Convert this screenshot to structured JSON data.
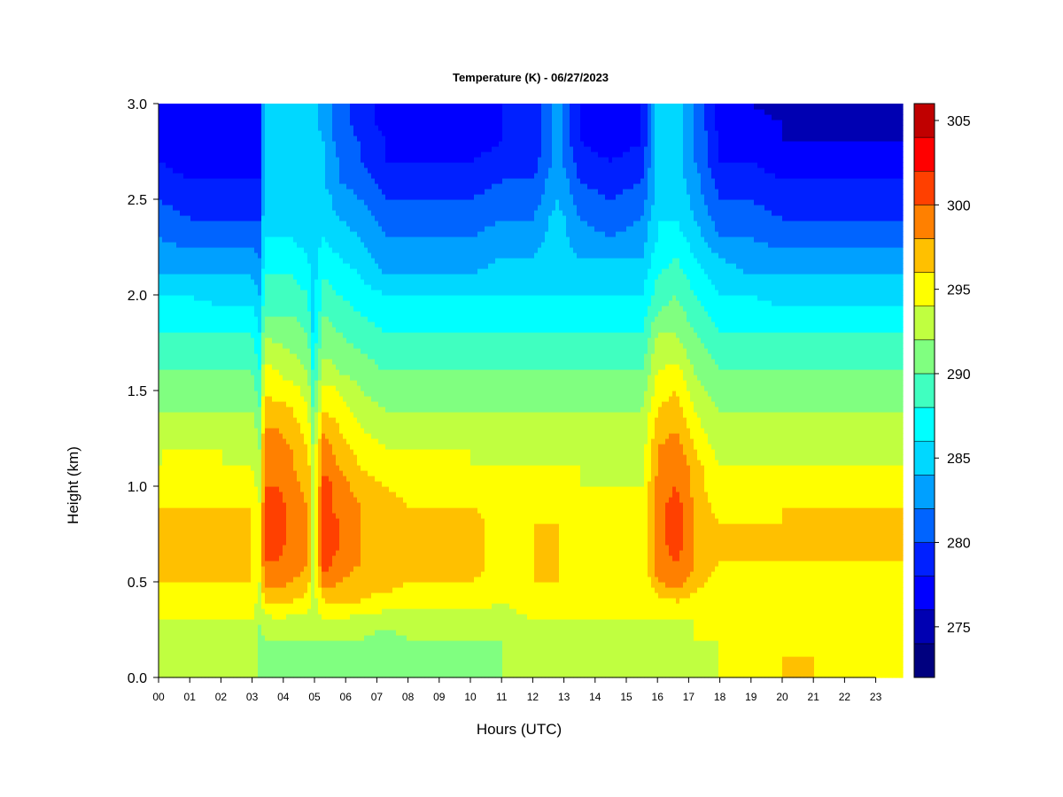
{
  "chart_data": {
    "type": "heatmap",
    "title": "Temperature (K) - 06/27/2023",
    "xlabel": "Hours (UTC)",
    "ylabel": "Height (km)",
    "x_ticks": [
      "00",
      "01",
      "02",
      "03",
      "04",
      "05",
      "06",
      "07",
      "08",
      "09",
      "10",
      "11",
      "12",
      "13",
      "14",
      "15",
      "16",
      "17",
      "18",
      "19",
      "20",
      "21",
      "22",
      "23"
    ],
    "xlim": [
      0,
      24
    ],
    "y_ticks": [
      "0.0",
      "0.5",
      "1.0",
      "1.5",
      "2.0",
      "2.5",
      "3.0"
    ],
    "ylim": [
      0,
      3
    ],
    "colorbar": {
      "ticks": [
        "275",
        "280",
        "285",
        "290",
        "295",
        "300",
        "305"
      ],
      "range": [
        272,
        306
      ],
      "levels": [
        272,
        274,
        276,
        278,
        280,
        282,
        284,
        286,
        288,
        290,
        292,
        294,
        296,
        298,
        300,
        302,
        304,
        306
      ],
      "colors": [
        "#00007f",
        "#0000b2",
        "#0000ff",
        "#0020ff",
        "#0064ff",
        "#00a0ff",
        "#00d8ff",
        "#00ffff",
        "#40ffc0",
        "#80ff80",
        "#c0ff40",
        "#ffff00",
        "#ffc000",
        "#ff8000",
        "#ff4000",
        "#ff0000",
        "#c00000",
        "#800000"
      ]
    },
    "heights": [
      0.0,
      0.1,
      0.2,
      0.3,
      0.4,
      0.5,
      0.6,
      0.7,
      0.8,
      0.9,
      1.0,
      1.1,
      1.2,
      1.3,
      1.4,
      1.5,
      1.6,
      1.7,
      1.8,
      1.9,
      2.0,
      2.1,
      2.2,
      2.3,
      2.4,
      2.5,
      2.6,
      2.7,
      2.8,
      2.9,
      3.0
    ],
    "columns": [
      {
        "t": 0.0,
        "temps": [
          293,
          293,
          293,
          294,
          295,
          296,
          296,
          296,
          296,
          296,
          295,
          294,
          294,
          293,
          292,
          291,
          290,
          289,
          288,
          287,
          286,
          284,
          283,
          282,
          281,
          280,
          279,
          278,
          277,
          277,
          276
        ]
      },
      {
        "t": 1.0,
        "temps": [
          293,
          293,
          293,
          294,
          295,
          296,
          296,
          296,
          296,
          296,
          295,
          294,
          294,
          293,
          292,
          291,
          290,
          289,
          288,
          287,
          286,
          284,
          283,
          281,
          280,
          279,
          278,
          277,
          277,
          276,
          276
        ]
      },
      {
        "t": 2.0,
        "temps": [
          293,
          293,
          293,
          294,
          295,
          296,
          296,
          296,
          296,
          296,
          295,
          294,
          294,
          293,
          292,
          291,
          290,
          289,
          288,
          287,
          285,
          284,
          283,
          281,
          280,
          279,
          278,
          277,
          277,
          276,
          276
        ]
      },
      {
        "t": 3.0,
        "temps": [
          293,
          293,
          293,
          294,
          295,
          296,
          296,
          296,
          296,
          296,
          295,
          294,
          293,
          293,
          292,
          291,
          290,
          289,
          288,
          287,
          285,
          284,
          283,
          281,
          280,
          279,
          278,
          277,
          277,
          276,
          276
        ]
      },
      {
        "t": 3.25,
        "temps": [
          291,
          291,
          291,
          292,
          293,
          294,
          294,
          294,
          294,
          294,
          293,
          292,
          292,
          291,
          290,
          289,
          288,
          287,
          286,
          285,
          284,
          283,
          282,
          281,
          280,
          279,
          278,
          277,
          277,
          276,
          276
        ]
      },
      {
        "t": 3.4,
        "temps": [
          291,
          291,
          292,
          293,
          296,
          299,
          300,
          300,
          300,
          300,
          300,
          299,
          299,
          298,
          297,
          296,
          295,
          293,
          292,
          290,
          289,
          288,
          287,
          286,
          286,
          285,
          285,
          285,
          285,
          285,
          285
        ]
      },
      {
        "t": 3.8,
        "temps": [
          291,
          291,
          292,
          294,
          296,
          299,
          300,
          301,
          301,
          301,
          300,
          300,
          299,
          298,
          297,
          295,
          294,
          293,
          291,
          290,
          289,
          288,
          287,
          286,
          285,
          285,
          285,
          285,
          284,
          284,
          284
        ]
      },
      {
        "t": 4.3,
        "temps": [
          291,
          291,
          292,
          293,
          296,
          298,
          299,
          299,
          299,
          299,
          299,
          298,
          298,
          297,
          296,
          295,
          293,
          292,
          291,
          290,
          289,
          288,
          287,
          286,
          285,
          285,
          284,
          284,
          284,
          284,
          284
        ]
      },
      {
        "t": 4.8,
        "temps": [
          291,
          291,
          292,
          293,
          295,
          297,
          298,
          298,
          298,
          298,
          297,
          297,
          296,
          295,
          294,
          293,
          292,
          291,
          290,
          289,
          288,
          287,
          286,
          285,
          284,
          284,
          284,
          284,
          284,
          284,
          284
        ]
      },
      {
        "t": 4.95,
        "temps": [
          291,
          291,
          292,
          293,
          293,
          293,
          293,
          293,
          293,
          293,
          293,
          292,
          292,
          291,
          290,
          289,
          288,
          287,
          286,
          285,
          285,
          285,
          285,
          285,
          285,
          285,
          285,
          285,
          285,
          285,
          285
        ]
      },
      {
        "t": 5.3,
        "temps": [
          291,
          291,
          292,
          294,
          296,
          299,
          301,
          302,
          302,
          301,
          301,
          300,
          299,
          298,
          296,
          295,
          293,
          292,
          291,
          290,
          289,
          288,
          287,
          286,
          285,
          285,
          284,
          284,
          284,
          283,
          283
        ]
      },
      {
        "t": 5.8,
        "temps": [
          291,
          291,
          292,
          294,
          296,
          298,
          299,
          300,
          300,
          299,
          299,
          298,
          297,
          296,
          295,
          294,
          292,
          291,
          290,
          289,
          288,
          287,
          286,
          285,
          284,
          283,
          282,
          282,
          281,
          281,
          281
        ]
      },
      {
        "t": 6.5,
        "temps": [
          291,
          291,
          292,
          293,
          296,
          297,
          298,
          298,
          298,
          298,
          297,
          296,
          295,
          294,
          293,
          292,
          291,
          290,
          289,
          288,
          287,
          286,
          285,
          284,
          283,
          282,
          281,
          280,
          280,
          279,
          279
        ]
      },
      {
        "t": 7.3,
        "temps": [
          290,
          290,
          291,
          293,
          295,
          297,
          297,
          297,
          297,
          297,
          296,
          295,
          294,
          293,
          292,
          291,
          290,
          289,
          288,
          287,
          286,
          284,
          283,
          282,
          281,
          280,
          279,
          278,
          278,
          277,
          277
        ]
      },
      {
        "t": 8.0,
        "temps": [
          291,
          291,
          292,
          293,
          295,
          296,
          296,
          296,
          296,
          296,
          295,
          294,
          294,
          293,
          292,
          291,
          290,
          289,
          288,
          287,
          286,
          284,
          283,
          282,
          281,
          280,
          279,
          278,
          277,
          277,
          277
        ]
      },
      {
        "t": 9.0,
        "temps": [
          291,
          291,
          292,
          293,
          295,
          296,
          296,
          296,
          296,
          296,
          295,
          294,
          294,
          293,
          292,
          291,
          290,
          289,
          288,
          287,
          286,
          284,
          283,
          282,
          281,
          280,
          279,
          278,
          277,
          277,
          277
        ]
      },
      {
        "t": 10.0,
        "temps": [
          291,
          291,
          292,
          293,
          295,
          296,
          297,
          297,
          297,
          296,
          295,
          294,
          294,
          293,
          292,
          291,
          290,
          289,
          288,
          287,
          286,
          284,
          283,
          282,
          281,
          280,
          279,
          278,
          277,
          277,
          277
        ]
      },
      {
        "t": 11.0,
        "temps": [
          292,
          292,
          292,
          293,
          294,
          295,
          295,
          295,
          295,
          295,
          294,
          294,
          293,
          293,
          292,
          291,
          290,
          289,
          288,
          287,
          286,
          285,
          284,
          283,
          282,
          281,
          280,
          279,
          278,
          278,
          278
        ]
      },
      {
        "t": 12.0,
        "temps": [
          293,
          293,
          293,
          294,
          295,
          296,
          296,
          296,
          296,
          295,
          295,
          294,
          293,
          293,
          292,
          291,
          290,
          289,
          288,
          287,
          286,
          285,
          284,
          283,
          282,
          281,
          280,
          279,
          278,
          278,
          278
        ]
      },
      {
        "t": 12.8,
        "temps": [
          293,
          293,
          293,
          294,
          295,
          296,
          296,
          296,
          296,
          296,
          295,
          294,
          294,
          293,
          292,
          291,
          290,
          289,
          288,
          287,
          286,
          285,
          285,
          285,
          285,
          284,
          284,
          283,
          283,
          283,
          283
        ]
      },
      {
        "t": 13.5,
        "temps": [
          293,
          293,
          293,
          294,
          294,
          295,
          295,
          295,
          295,
          295,
          294,
          294,
          293,
          293,
          292,
          291,
          290,
          289,
          288,
          287,
          286,
          285,
          284,
          283,
          282,
          281,
          280,
          279,
          278,
          278,
          278
        ]
      },
      {
        "t": 14.5,
        "temps": [
          293,
          293,
          293,
          294,
          294,
          294,
          294,
          294,
          294,
          294,
          294,
          293,
          293,
          292,
          292,
          291,
          290,
          289,
          288,
          287,
          286,
          285,
          284,
          282,
          281,
          280,
          279,
          278,
          277,
          277,
          277
        ]
      },
      {
        "t": 15.5,
        "temps": [
          293,
          293,
          293,
          294,
          294,
          294,
          294,
          294,
          294,
          294,
          294,
          293,
          293,
          292,
          292,
          291,
          290,
          289,
          288,
          287,
          286,
          285,
          284,
          283,
          282,
          281,
          280,
          279,
          278,
          278,
          278
        ]
      },
      {
        "t": 16.0,
        "temps": [
          293,
          293,
          293,
          294,
          295,
          298,
          299,
          299,
          299,
          299,
          299,
          298,
          298,
          297,
          296,
          295,
          294,
          293,
          292,
          290,
          289,
          288,
          287,
          286,
          286,
          285,
          285,
          285,
          285,
          285,
          285
        ]
      },
      {
        "t": 16.6,
        "temps": [
          293,
          293,
          293,
          294,
          296,
          299,
          300,
          301,
          301,
          301,
          300,
          300,
          299,
          298,
          297,
          296,
          295,
          293,
          292,
          291,
          290,
          289,
          288,
          287,
          286,
          286,
          285,
          285,
          285,
          285,
          285
        ]
      },
      {
        "t": 17.2,
        "temps": [
          293,
          293,
          294,
          294,
          295,
          297,
          298,
          298,
          298,
          298,
          297,
          297,
          296,
          295,
          294,
          293,
          292,
          291,
          290,
          289,
          288,
          287,
          286,
          285,
          284,
          283,
          283,
          282,
          282,
          282,
          282
        ]
      },
      {
        "t": 18.0,
        "temps": [
          294,
          294,
          294,
          294,
          295,
          295,
          296,
          296,
          296,
          295,
          294,
          294,
          293,
          292,
          292,
          291,
          290,
          289,
          288,
          287,
          286,
          285,
          284,
          282,
          281,
          280,
          279,
          278,
          278,
          277,
          277
        ]
      },
      {
        "t": 19.0,
        "temps": [
          295,
          295,
          294,
          294,
          295,
          295,
          296,
          296,
          296,
          295,
          295,
          294,
          293,
          292,
          292,
          291,
          290,
          289,
          288,
          287,
          286,
          284,
          283,
          282,
          281,
          280,
          279,
          278,
          277,
          277,
          276
        ]
      },
      {
        "t": 20.0,
        "temps": [
          296,
          296,
          295,
          295,
          295,
          295,
          296,
          296,
          296,
          296,
          295,
          294,
          293,
          292,
          292,
          291,
          290,
          289,
          288,
          287,
          285,
          284,
          283,
          281,
          280,
          279,
          278,
          277,
          276,
          276,
          275
        ]
      },
      {
        "t": 21.0,
        "temps": [
          296,
          296,
          295,
          295,
          295,
          296,
          296,
          296,
          296,
          296,
          295,
          294,
          293,
          292,
          292,
          291,
          290,
          289,
          288,
          287,
          285,
          284,
          283,
          281,
          280,
          279,
          278,
          277,
          276,
          275,
          275
        ]
      },
      {
        "t": 22.0,
        "temps": [
          296,
          295,
          295,
          295,
          295,
          295,
          296,
          296,
          296,
          296,
          295,
          294,
          293,
          293,
          292,
          291,
          290,
          289,
          288,
          287,
          285,
          284,
          283,
          281,
          280,
          279,
          278,
          277,
          276,
          275,
          275
        ]
      },
      {
        "t": 23.0,
        "temps": [
          295,
          295,
          295,
          295,
          295,
          295,
          296,
          296,
          296,
          296,
          295,
          294,
          293,
          293,
          292,
          291,
          290,
          289,
          288,
          287,
          285,
          284,
          283,
          281,
          280,
          279,
          278,
          277,
          276,
          275,
          275
        ]
      },
      {
        "t": 23.85,
        "temps": [
          295,
          295,
          295,
          295,
          295,
          295,
          296,
          296,
          296,
          296,
          295,
          294,
          293,
          293,
          292,
          291,
          290,
          289,
          288,
          287,
          285,
          284,
          283,
          281,
          280,
          279,
          278,
          277,
          276,
          275,
          275
        ]
      }
    ]
  }
}
